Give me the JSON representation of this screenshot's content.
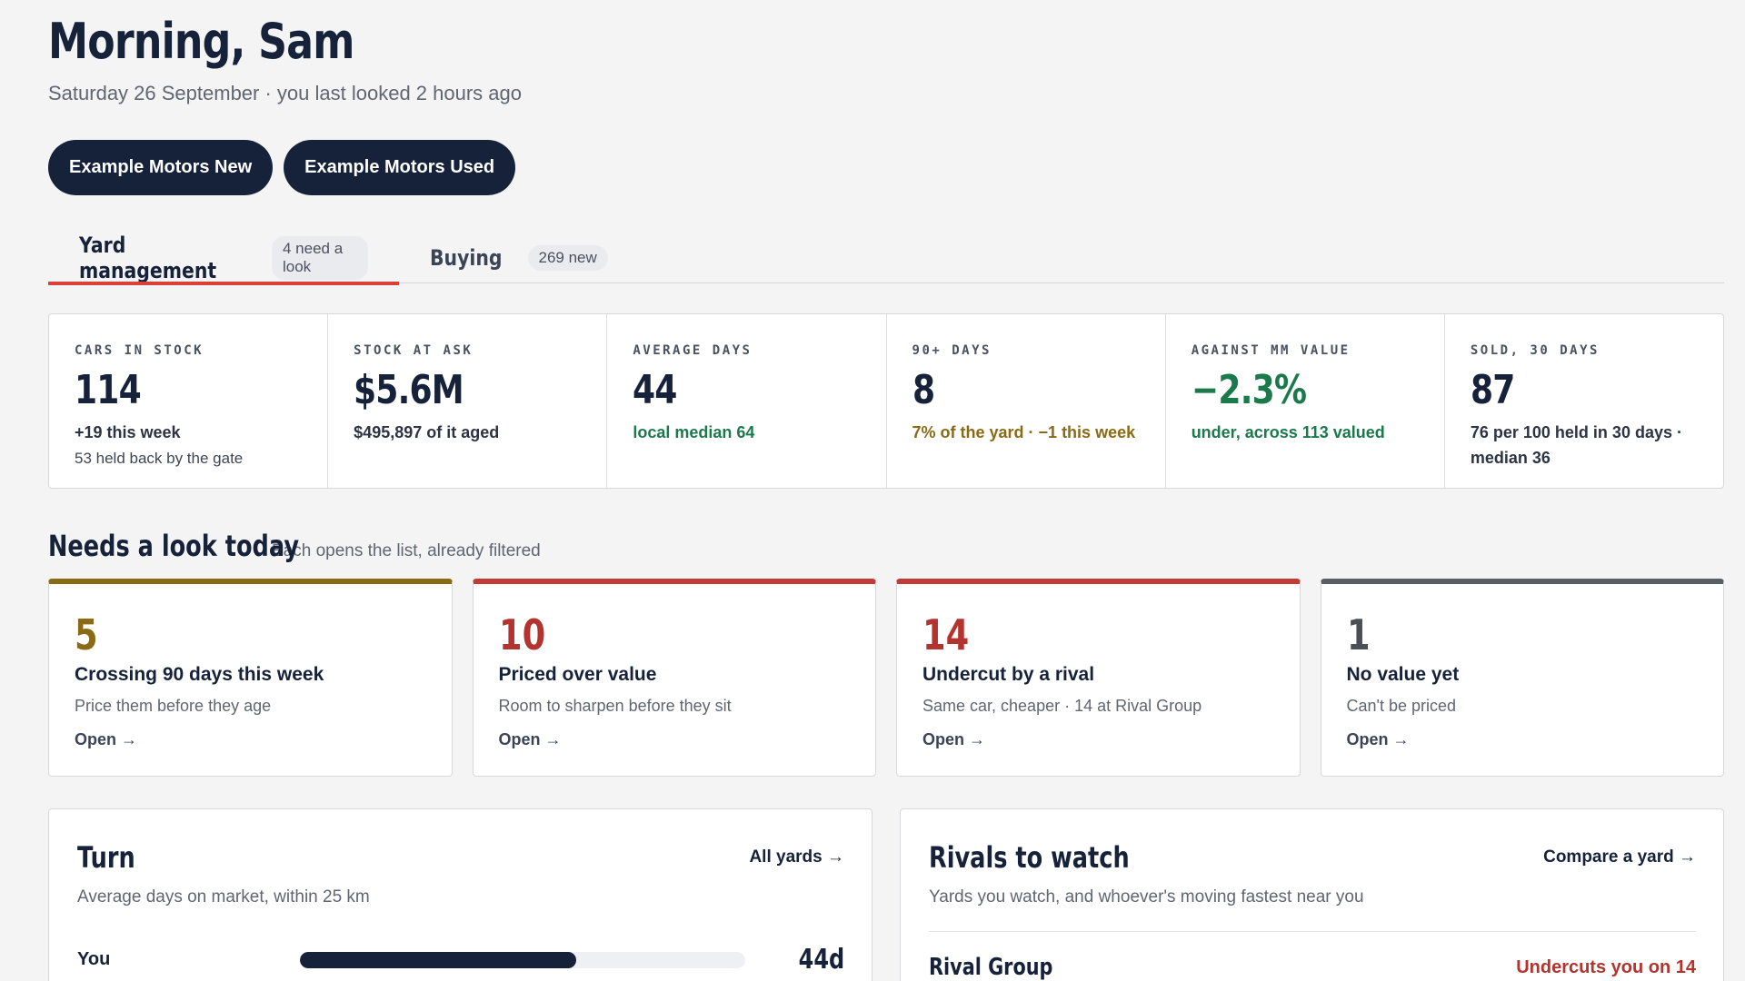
{
  "header": {
    "greeting": "Morning, Sam",
    "subline": "Saturday 26 September · you last looked 2 hours ago"
  },
  "yards": [
    {
      "label": "Example Motors New"
    },
    {
      "label": "Example Motors Used"
    }
  ],
  "tabs": [
    {
      "label": "Yard management",
      "badge": "4 need a look",
      "active": true
    },
    {
      "label": "Buying",
      "badge": "269 new",
      "active": false
    }
  ],
  "stats": [
    {
      "label": "CARS IN STOCK",
      "value": "114",
      "sub": "+19 this week",
      "sub2": "53 held back by the gate"
    },
    {
      "label": "STOCK AT ASK",
      "value": "$5.6M",
      "sub": "$495,897 of it aged"
    },
    {
      "label": "AVERAGE DAYS",
      "value": "44",
      "sub": "local median 64"
    },
    {
      "label": "90+ DAYS",
      "value": "8",
      "sub": "7% of the yard · −1 this week"
    },
    {
      "label": "AGAINST MM VALUE",
      "value": "−2.3%",
      "sub": "under, across 113 valued"
    },
    {
      "label": "SOLD, 30 DAYS",
      "value": "87",
      "sub": "76 per 100 held in 30 days · median 36"
    }
  ],
  "needs": {
    "title": "Needs a look today",
    "subtitle": "Each opens the list, already filtered",
    "cards": [
      {
        "count": "5",
        "title": "Crossing 90 days this week",
        "desc": "Price them before they age",
        "open": "Open →"
      },
      {
        "count": "10",
        "title": "Priced over value",
        "desc": "Room to sharpen before they sit",
        "open": "Open →"
      },
      {
        "count": "14",
        "title": "Undercut by a rival",
        "desc": "Same car, cheaper · 14 at Rival Group",
        "open": "Open →"
      },
      {
        "count": "1",
        "title": "No value yet",
        "desc": "Can't be priced",
        "open": "Open →"
      }
    ]
  },
  "turn": {
    "title": "Turn",
    "link": "All yards →",
    "subtitle": "Average days on market, within 25 km",
    "rows": [
      {
        "label": "You",
        "value": "44d",
        "fill_fraction": 0.62
      }
    ]
  },
  "rivals": {
    "title": "Rivals to watch",
    "link": "Compare a yard →",
    "subtitle": "Yards you watch, and whoever's moving fastest near you",
    "rows": [
      {
        "name": "Rival Group",
        "flag": "Undercuts you on 14"
      }
    ]
  },
  "colors": {
    "navy": "#16223a",
    "accent_red": "#d8413a",
    "green": "#1b7a4c",
    "olive": "#8a6a14",
    "alert_red": "#b3342e"
  }
}
